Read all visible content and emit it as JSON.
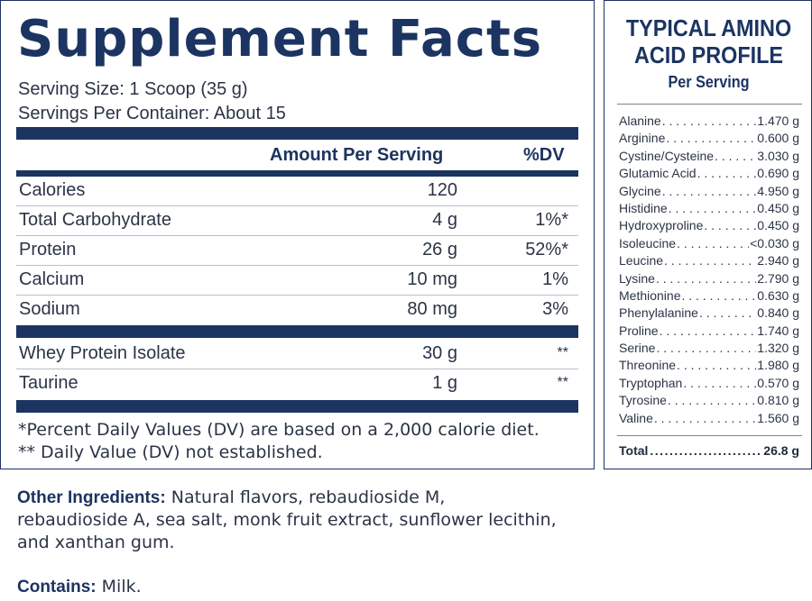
{
  "supplement_facts": {
    "title": "Supplement Facts",
    "serving_size": "Serving Size: 1 Scoop (35 g)",
    "servings_per_container": "Servings Per Container: About 15",
    "col_amount": "Amount Per Serving",
    "col_dv": "%DV",
    "nutrients": [
      {
        "name": "Calories",
        "amount": "120",
        "dv": ""
      },
      {
        "name": "Total Carbohydrate",
        "amount": "4 g",
        "dv": "1%*"
      },
      {
        "name": "Protein",
        "amount": "26 g",
        "dv": "52%*"
      },
      {
        "name": "Calcium",
        "amount": "10 mg",
        "dv": "1%"
      },
      {
        "name": "Sodium",
        "amount": "80 mg",
        "dv": "3%"
      }
    ],
    "ingredients": [
      {
        "name": "Whey Protein Isolate",
        "amount": "30 g",
        "dv": "**"
      },
      {
        "name": "Taurine",
        "amount": "1 g",
        "dv": "**"
      }
    ],
    "footnote_1": "*Percent Daily Values (DV) are based on a 2,000 calorie diet.",
    "footnote_2": "** Daily Value (DV) not established."
  },
  "amino_profile": {
    "title_line1": "TYPICAL AMINO",
    "title_line2": "ACID PROFILE",
    "subtitle": "Per Serving",
    "items": [
      {
        "name": "Alanine",
        "value": "1.470 g"
      },
      {
        "name": "Arginine",
        "value": "0.600 g"
      },
      {
        "name": "Cystine/Cysteine",
        "value": "3.030 g"
      },
      {
        "name": "Glutamic Acid",
        "value": "0.690 g"
      },
      {
        "name": "Glycine",
        "value": "4.950 g"
      },
      {
        "name": "Histidine",
        "value": "0.450 g"
      },
      {
        "name": "Hydroxyproline",
        "value": "0.450 g"
      },
      {
        "name": "Isoleucine",
        "value": "<0.030 g"
      },
      {
        "name": "Leucine",
        "value": "2.940 g"
      },
      {
        "name": "Lysine",
        "value": "2.790 g"
      },
      {
        "name": "Methionine",
        "value": "0.630 g"
      },
      {
        "name": "Phenylalanine",
        "value": "0.840 g"
      },
      {
        "name": "Proline",
        "value": "1.740 g"
      },
      {
        "name": "Serine",
        "value": "1.320 g"
      },
      {
        "name": "Threonine",
        "value": "1.980 g"
      },
      {
        "name": "Tryptophan",
        "value": "0.570 g"
      },
      {
        "name": "Tyrosine",
        "value": "0.810 g"
      },
      {
        "name": "Valine",
        "value": "1.560 g"
      }
    ],
    "total_label": "Total",
    "total_value": "26.8 g"
  },
  "other_ingredients": {
    "label": "Other Ingredients:",
    "line1": " Natural flavors, rebaudioside M,",
    "line2": "rebaudioside A, sea salt, monk fruit extract, sunflower lecithin,",
    "line3": "and xanthan gum."
  },
  "contains": {
    "label": "Contains:",
    "text": " Milk."
  },
  "colors": {
    "navy": "#1c3461",
    "text": "#2b3446"
  }
}
